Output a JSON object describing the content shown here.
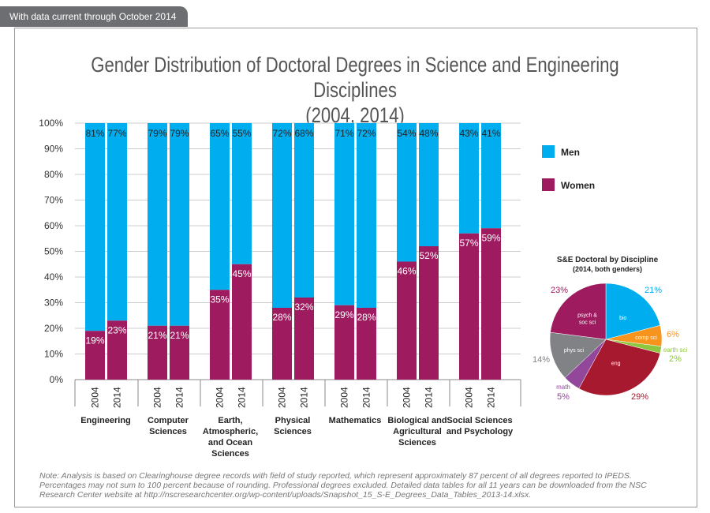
{
  "banner": "With data current through October 2014",
  "chart_data": [
    {
      "type": "bar",
      "stacked": true,
      "title": "Gender Distribution of Doctoral Degrees in Science and Engineering Disciplines",
      "subtitle": "(2004, 2014)",
      "ylim": [
        0,
        100
      ],
      "yticks": [
        "0%",
        "10%",
        "20%",
        "30%",
        "40%",
        "50%",
        "60%",
        "70%",
        "80%",
        "90%",
        "100%"
      ],
      "groups": [
        "Engineering",
        "Computer Sciences",
        "Earth, Atmospheric, and Ocean Sciences",
        "Physical Sciences",
        "Mathematics",
        "Biological and Agricultural Sciences",
        "Social Sciences and Psychology"
      ],
      "group_lines": [
        [
          "Engineering"
        ],
        [
          "Computer",
          "Sciences"
        ],
        [
          "Earth,",
          "Atmospheric,",
          "and Ocean",
          "Sciences"
        ],
        [
          "Physical",
          "Sciences"
        ],
        [
          "Mathematics"
        ],
        [
          "Biological and",
          "Agricultural",
          "Sciences"
        ],
        [
          "Social Sciences",
          "and Psychology"
        ]
      ],
      "years": [
        "2004",
        "2014"
      ],
      "grid": true,
      "legend_placement": "right",
      "series": [
        {
          "name": "Men",
          "color": "#00aeef",
          "values": [
            [
              81,
              77
            ],
            [
              79,
              79
            ],
            [
              65,
              55
            ],
            [
              72,
              68
            ],
            [
              71,
              72
            ],
            [
              54,
              48
            ],
            [
              43,
              41
            ]
          ]
        },
        {
          "name": "Women",
          "color": "#9e1b5f",
          "values": [
            [
              19,
              23
            ],
            [
              21,
              21
            ],
            [
              35,
              45
            ],
            [
              28,
              32
            ],
            [
              29,
              28
            ],
            [
              46,
              52
            ],
            [
              57,
              59
            ]
          ]
        }
      ]
    },
    {
      "type": "pie",
      "title": "S&E Doctoral by Discipline",
      "subtitle": "(2014, both genders)",
      "slices": [
        {
          "label": "bio",
          "value": 21,
          "color": "#00aeef"
        },
        {
          "label": "comp sci",
          "value": 6,
          "color": "#f7941d"
        },
        {
          "label": "earth sci",
          "value": 2,
          "color": "#8dc63f"
        },
        {
          "label": "eng",
          "value": 29,
          "color": "#a6192e"
        },
        {
          "label": "math",
          "value": 5,
          "color": "#92479a"
        },
        {
          "label": "phys sci",
          "value": 14,
          "color": "#808285"
        },
        {
          "label": "psych & soc sci",
          "value": 23,
          "color": "#9e1b5f"
        }
      ]
    }
  ],
  "note": "Note: Analysis is based on Clearinghouse degree records with field of study reported, which represent approximately 87 percent of all degrees reported to IPEDS. Percentages may not sum to 100 percent because of rounding. Professional degrees excluded. Detailed data tables for all 11 years can be downloaded from the NSC Research Center website at http://nscresearchcenter.org/wp-content/uploads/Snapshot_15_S-E_Degrees_Data_Tables_2013-14.xlsx."
}
